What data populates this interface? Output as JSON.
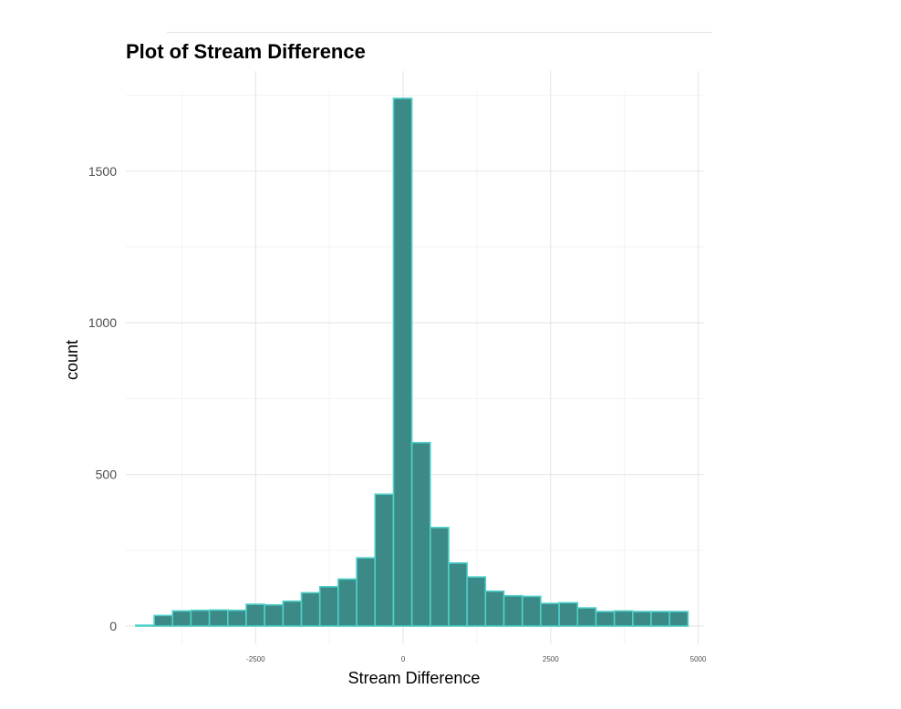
{
  "chart_data": {
    "type": "bar",
    "subtype": "histogram",
    "title": "Plot of Stream Difference",
    "xlabel": "Stream Difference",
    "ylabel": "count",
    "xlim": [
      -4700,
      5100
    ],
    "ylim": [
      -60,
      1830
    ],
    "x_ticks": [
      -2500,
      0,
      2500,
      5000
    ],
    "x_tick_labels": [
      "-2500",
      "0",
      "2500",
      "5000"
    ],
    "y_ticks": [
      0,
      500,
      1000,
      1500
    ],
    "y_tick_labels": [
      "0",
      "500",
      "1000",
      "1500"
    ],
    "grid": true,
    "bin_width": 312,
    "bins_start": [
      -4532,
      -4220,
      -3908,
      -3596,
      -3284,
      -2972,
      -2660,
      -2348,
      -2036,
      -1724,
      -1412,
      -1100,
      -788,
      -476,
      -164,
      148,
      460,
      772,
      1084,
      1396,
      1708,
      2020,
      2332,
      2644,
      2956,
      3268,
      3580,
      3892,
      4204,
      4516
    ],
    "values": [
      3,
      35,
      50,
      52,
      53,
      52,
      72,
      70,
      82,
      110,
      130,
      155,
      225,
      435,
      1740,
      605,
      325,
      208,
      162,
      115,
      100,
      98,
      75,
      77,
      60,
      48,
      50,
      48,
      48,
      48
    ],
    "colors": {
      "fill": "#3b8a87",
      "stroke": "#4fd0c9",
      "grid_major": "#e8e8e8",
      "grid_minor": "#f3f3f3"
    }
  }
}
